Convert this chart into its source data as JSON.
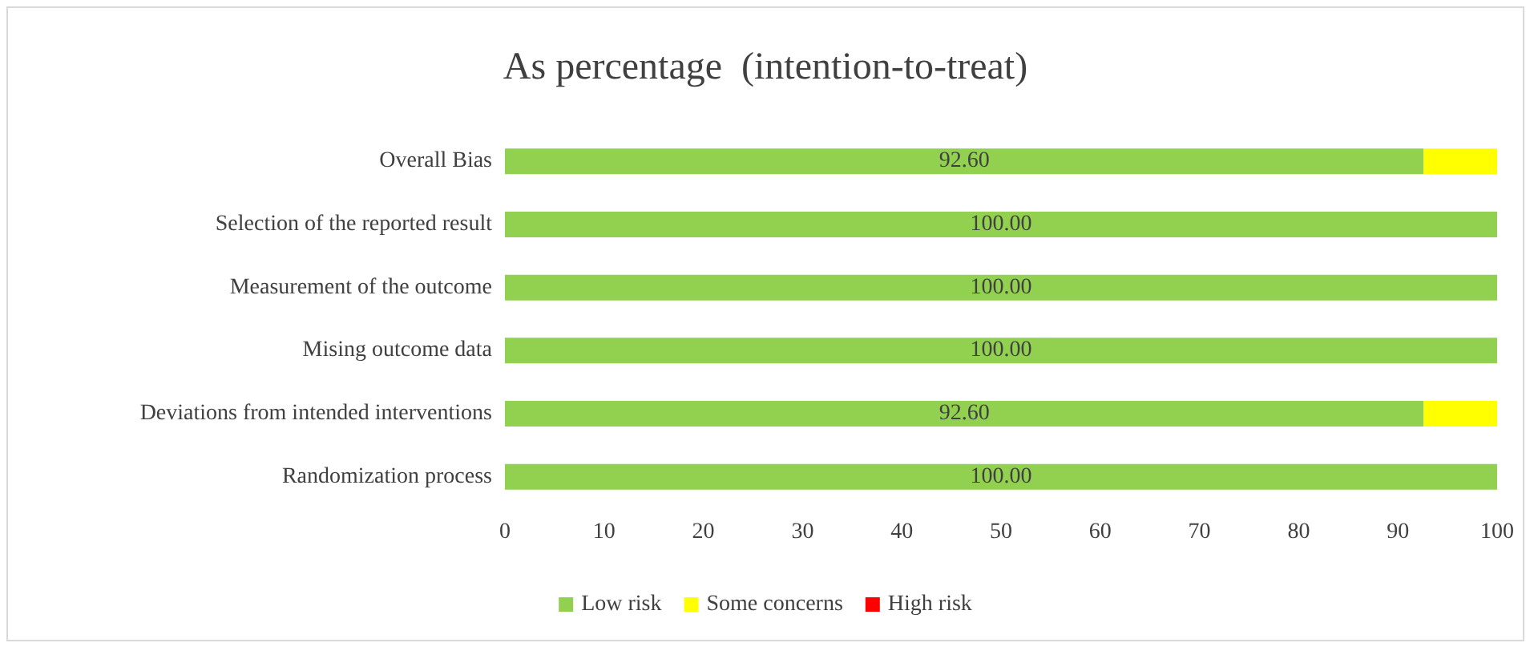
{
  "chart_data": {
    "type": "bar",
    "title": "As percentage  (intention-to-treat)",
    "orientation": "horizontal",
    "stacked": true,
    "categories": [
      "Overall Bias",
      "Selection of the reported result",
      "Measurement of the outcome",
      "Mising outcome data",
      "Deviations from intended interventions",
      "Randomization process"
    ],
    "series": [
      {
        "name": "Low risk",
        "color": "#92d050",
        "values": [
          92.6,
          100,
          100,
          100,
          92.6,
          100
        ],
        "value_labels": [
          "92.60",
          "100.00",
          "100.00",
          "100.00",
          "92.60",
          "100.00"
        ]
      },
      {
        "name": "Some concerns",
        "color": "#ffff00",
        "values": [
          7.4,
          0,
          0,
          0,
          7.4,
          0
        ]
      },
      {
        "name": "High risk",
        "color": "#ff0000",
        "values": [
          0,
          0,
          0,
          0,
          0,
          0
        ]
      }
    ],
    "xlim": [
      0,
      100
    ],
    "xticks": [
      0,
      10,
      20,
      30,
      40,
      50,
      60,
      70,
      80,
      90,
      100
    ],
    "grid": false,
    "legend": "bottom"
  }
}
